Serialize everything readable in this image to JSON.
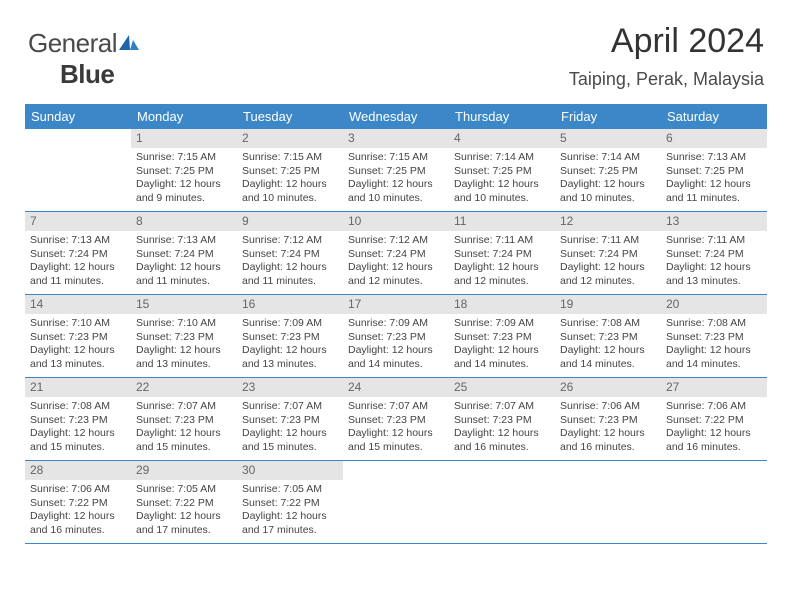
{
  "logo": {
    "text1": "General",
    "text2": "Blue"
  },
  "title": "April 2024",
  "location": "Taiping, Perak, Malaysia",
  "colors": {
    "header_bg": "#3b87c8",
    "header_fg": "#ffffff",
    "daynum_bg": "#e5e5e5",
    "row_border": "#3b87c8",
    "text": "#444444",
    "background": "#ffffff"
  },
  "day_headers": [
    "Sunday",
    "Monday",
    "Tuesday",
    "Wednesday",
    "Thursday",
    "Friday",
    "Saturday"
  ],
  "weeks": [
    [
      null,
      {
        "n": "1",
        "sr": "7:15 AM",
        "ss": "7:25 PM",
        "dl": "12 hours and 9 minutes."
      },
      {
        "n": "2",
        "sr": "7:15 AM",
        "ss": "7:25 PM",
        "dl": "12 hours and 10 minutes."
      },
      {
        "n": "3",
        "sr": "7:15 AM",
        "ss": "7:25 PM",
        "dl": "12 hours and 10 minutes."
      },
      {
        "n": "4",
        "sr": "7:14 AM",
        "ss": "7:25 PM",
        "dl": "12 hours and 10 minutes."
      },
      {
        "n": "5",
        "sr": "7:14 AM",
        "ss": "7:25 PM",
        "dl": "12 hours and 10 minutes."
      },
      {
        "n": "6",
        "sr": "7:13 AM",
        "ss": "7:25 PM",
        "dl": "12 hours and 11 minutes."
      }
    ],
    [
      {
        "n": "7",
        "sr": "7:13 AM",
        "ss": "7:24 PM",
        "dl": "12 hours and 11 minutes."
      },
      {
        "n": "8",
        "sr": "7:13 AM",
        "ss": "7:24 PM",
        "dl": "12 hours and 11 minutes."
      },
      {
        "n": "9",
        "sr": "7:12 AM",
        "ss": "7:24 PM",
        "dl": "12 hours and 11 minutes."
      },
      {
        "n": "10",
        "sr": "7:12 AM",
        "ss": "7:24 PM",
        "dl": "12 hours and 12 minutes."
      },
      {
        "n": "11",
        "sr": "7:11 AM",
        "ss": "7:24 PM",
        "dl": "12 hours and 12 minutes."
      },
      {
        "n": "12",
        "sr": "7:11 AM",
        "ss": "7:24 PM",
        "dl": "12 hours and 12 minutes."
      },
      {
        "n": "13",
        "sr": "7:11 AM",
        "ss": "7:24 PM",
        "dl": "12 hours and 13 minutes."
      }
    ],
    [
      {
        "n": "14",
        "sr": "7:10 AM",
        "ss": "7:23 PM",
        "dl": "12 hours and 13 minutes."
      },
      {
        "n": "15",
        "sr": "7:10 AM",
        "ss": "7:23 PM",
        "dl": "12 hours and 13 minutes."
      },
      {
        "n": "16",
        "sr": "7:09 AM",
        "ss": "7:23 PM",
        "dl": "12 hours and 13 minutes."
      },
      {
        "n": "17",
        "sr": "7:09 AM",
        "ss": "7:23 PM",
        "dl": "12 hours and 14 minutes."
      },
      {
        "n": "18",
        "sr": "7:09 AM",
        "ss": "7:23 PM",
        "dl": "12 hours and 14 minutes."
      },
      {
        "n": "19",
        "sr": "7:08 AM",
        "ss": "7:23 PM",
        "dl": "12 hours and 14 minutes."
      },
      {
        "n": "20",
        "sr": "7:08 AM",
        "ss": "7:23 PM",
        "dl": "12 hours and 14 minutes."
      }
    ],
    [
      {
        "n": "21",
        "sr": "7:08 AM",
        "ss": "7:23 PM",
        "dl": "12 hours and 15 minutes."
      },
      {
        "n": "22",
        "sr": "7:07 AM",
        "ss": "7:23 PM",
        "dl": "12 hours and 15 minutes."
      },
      {
        "n": "23",
        "sr": "7:07 AM",
        "ss": "7:23 PM",
        "dl": "12 hours and 15 minutes."
      },
      {
        "n": "24",
        "sr": "7:07 AM",
        "ss": "7:23 PM",
        "dl": "12 hours and 15 minutes."
      },
      {
        "n": "25",
        "sr": "7:07 AM",
        "ss": "7:23 PM",
        "dl": "12 hours and 16 minutes."
      },
      {
        "n": "26",
        "sr": "7:06 AM",
        "ss": "7:23 PM",
        "dl": "12 hours and 16 minutes."
      },
      {
        "n": "27",
        "sr": "7:06 AM",
        "ss": "7:22 PM",
        "dl": "12 hours and 16 minutes."
      }
    ],
    [
      {
        "n": "28",
        "sr": "7:06 AM",
        "ss": "7:22 PM",
        "dl": "12 hours and 16 minutes."
      },
      {
        "n": "29",
        "sr": "7:05 AM",
        "ss": "7:22 PM",
        "dl": "12 hours and 17 minutes."
      },
      {
        "n": "30",
        "sr": "7:05 AM",
        "ss": "7:22 PM",
        "dl": "12 hours and 17 minutes."
      },
      null,
      null,
      null,
      null
    ]
  ],
  "labels": {
    "sunrise": "Sunrise:",
    "sunset": "Sunset:",
    "daylight": "Daylight:"
  }
}
